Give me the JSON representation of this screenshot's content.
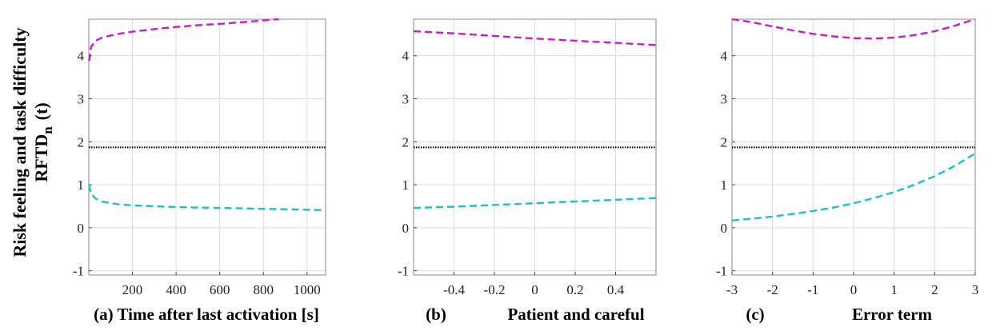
{
  "ylabel": {
    "line1": "Risk feeling and task difficulty",
    "line2_main": "RFTD",
    "line2_sub": "n",
    "line2_tail": "(t)"
  },
  "colors": {
    "upper": "#c81ec8",
    "lower": "#20c0c0",
    "threshold": "#000000",
    "grid": "#dcdcdc",
    "axis": "#8a8a8a"
  },
  "chart_data": [
    {
      "type": "line",
      "xlabel": "(a) Time after last activation [s]",
      "xlim": [
        0,
        1085
      ],
      "ylim": [
        -1.1,
        4.85
      ],
      "xticks": [
        200,
        400,
        600,
        800,
        1000
      ],
      "xticklabels": [
        "200",
        "400",
        "600",
        "800",
        "1000"
      ],
      "yticks": [
        -1,
        0,
        1,
        2,
        3,
        4
      ],
      "yticklabels": [
        "-1",
        "0",
        "1",
        "2",
        "3",
        "4"
      ],
      "grid": true,
      "series": [
        {
          "style": "dashed",
          "color": "#c81ec8",
          "x": [
            1,
            10,
            30,
            60,
            100,
            150,
            200,
            300,
            400,
            500,
            600,
            700,
            800,
            870
          ],
          "y": [
            3.88,
            4.2,
            4.35,
            4.42,
            4.47,
            4.52,
            4.56,
            4.62,
            4.67,
            4.71,
            4.74,
            4.78,
            4.82,
            4.85
          ]
        },
        {
          "style": "dotted",
          "color": "#000000",
          "x": [
            0,
            1085
          ],
          "y": [
            1.87,
            1.87
          ]
        },
        {
          "style": "dashed",
          "color": "#20c0c0",
          "x": [
            1,
            10,
            30,
            60,
            100,
            150,
            200,
            300,
            400,
            500,
            600,
            700,
            800,
            900,
            1000,
            1080
          ],
          "y": [
            1.0,
            0.8,
            0.68,
            0.61,
            0.57,
            0.54,
            0.52,
            0.5,
            0.48,
            0.47,
            0.46,
            0.45,
            0.44,
            0.43,
            0.42,
            0.41
          ]
        }
      ]
    },
    {
      "type": "line",
      "xlabel_prefix": "(b)",
      "xlabel": "Patient and careful",
      "xlim": [
        -0.6,
        0.6
      ],
      "ylim": [
        -1.1,
        4.85
      ],
      "xticks": [
        -0.4,
        -0.2,
        0,
        0.2,
        0.4
      ],
      "xticklabels": [
        "-0.4",
        "-0.2",
        "0",
        "0.2",
        "0.4"
      ],
      "yticks": [
        -1,
        0,
        1,
        2,
        3,
        4
      ],
      "yticklabels": [
        "-1",
        "0",
        "1",
        "2",
        "3",
        "4"
      ],
      "grid": true,
      "series": [
        {
          "style": "dashed",
          "color": "#c81ec8",
          "x": [
            -0.6,
            -0.4,
            -0.2,
            0,
            0.2,
            0.4,
            0.6
          ],
          "y": [
            4.57,
            4.52,
            4.46,
            4.4,
            4.35,
            4.3,
            4.25
          ]
        },
        {
          "style": "dotted",
          "color": "#000000",
          "x": [
            -0.6,
            0.6
          ],
          "y": [
            1.87,
            1.87
          ]
        },
        {
          "style": "dashed",
          "color": "#20c0c0",
          "x": [
            -0.6,
            -0.4,
            -0.2,
            0,
            0.2,
            0.4,
            0.6
          ],
          "y": [
            0.46,
            0.49,
            0.53,
            0.57,
            0.61,
            0.65,
            0.69
          ]
        }
      ]
    },
    {
      "type": "line",
      "xlabel_prefix": "(c)",
      "xlabel": "Error term",
      "xlim": [
        -3,
        3
      ],
      "ylim": [
        -1.1,
        4.85
      ],
      "xticks": [
        -3,
        -2,
        -1,
        0,
        1,
        2,
        3
      ],
      "xticklabels": [
        "-3",
        "-2",
        "-1",
        "0",
        "1",
        "2",
        "3"
      ],
      "yticks": [
        -1,
        0,
        1,
        2,
        3,
        4
      ],
      "yticklabels": [
        "-1",
        "0",
        "1",
        "2",
        "3",
        "4"
      ],
      "grid": true,
      "series": [
        {
          "style": "dashed",
          "color": "#c81ec8",
          "x": [
            -3,
            -2.5,
            -2,
            -1.5,
            -1,
            -0.5,
            0,
            0.5,
            1,
            1.5,
            2,
            2.5,
            3
          ],
          "y": [
            4.85,
            4.78,
            4.68,
            4.59,
            4.51,
            4.45,
            4.41,
            4.4,
            4.42,
            4.48,
            4.57,
            4.7,
            4.85
          ]
        },
        {
          "style": "dotted",
          "color": "#000000",
          "x": [
            -3,
            3
          ],
          "y": [
            1.87,
            1.87
          ]
        },
        {
          "style": "dashed",
          "color": "#20c0c0",
          "x": [
            -3,
            -2.5,
            -2,
            -1.5,
            -1,
            -0.5,
            0,
            0.5,
            1,
            1.5,
            2,
            2.5,
            3
          ],
          "y": [
            0.17,
            0.21,
            0.26,
            0.32,
            0.39,
            0.47,
            0.57,
            0.69,
            0.83,
            1.0,
            1.2,
            1.44,
            1.73
          ]
        }
      ]
    }
  ]
}
